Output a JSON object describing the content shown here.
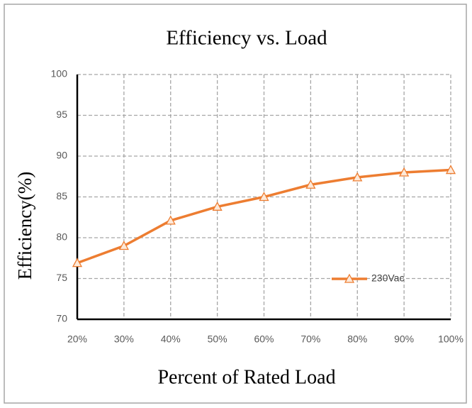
{
  "chart_data": {
    "type": "line",
    "title": "Efficiency vs. Load",
    "x_label": "Percent of Rated Load",
    "y_label": "Efficiency(%)",
    "categories": [
      "20%",
      "30%",
      "40%",
      "50%",
      "60%",
      "70%",
      "80%",
      "90%",
      "100%"
    ],
    "series": [
      {
        "name": "230Vac",
        "color": "#ed7d31",
        "values": [
          76.9,
          79.0,
          82.1,
          83.8,
          85.0,
          86.5,
          87.4,
          88.0,
          88.3
        ]
      }
    ],
    "ylim": [
      70,
      100
    ],
    "yticks": [
      70,
      75,
      80,
      85,
      90,
      95,
      100
    ],
    "grid": true,
    "legend": "lower right"
  }
}
